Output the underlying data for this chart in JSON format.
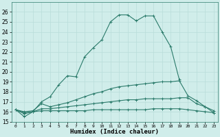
{
  "xlabel": "Humidex (Indice chaleur)",
  "x": [
    0,
    1,
    2,
    3,
    4,
    5,
    6,
    7,
    8,
    9,
    10,
    11,
    12,
    13,
    14,
    15,
    16,
    17,
    18,
    19,
    20,
    21,
    22,
    23
  ],
  "line1": [
    16.2,
    15.5,
    16.0,
    17.0,
    17.5,
    18.7,
    19.6,
    19.5,
    21.5,
    22.4,
    23.2,
    25.0,
    25.7,
    25.7,
    25.1,
    25.6,
    25.6,
    24.0,
    22.5,
    19.2,
    null,
    null,
    null,
    null
  ],
  "line2": [
    16.2,
    16.0,
    16.1,
    16.8,
    16.5,
    16.7,
    16.9,
    17.2,
    17.5,
    17.8,
    18.0,
    18.3,
    18.5,
    18.6,
    18.7,
    18.8,
    18.9,
    19.0,
    19.0,
    19.1,
    17.6,
    17.1,
    16.5,
    15.9
  ],
  "line3": [
    16.2,
    15.9,
    16.0,
    16.3,
    16.3,
    16.4,
    16.5,
    16.6,
    16.7,
    16.8,
    16.9,
    17.0,
    17.1,
    17.2,
    17.2,
    17.3,
    17.3,
    17.3,
    17.3,
    17.4,
    17.4,
    16.8,
    16.5,
    16.1
  ],
  "line4": [
    16.2,
    15.8,
    16.0,
    16.1,
    16.1,
    16.1,
    16.1,
    16.1,
    16.1,
    16.2,
    16.2,
    16.2,
    16.2,
    16.2,
    16.2,
    16.2,
    16.3,
    16.3,
    16.3,
    16.3,
    16.2,
    16.1,
    16.0,
    15.9
  ],
  "ylim": [
    15,
    27
  ],
  "yticks": [
    15,
    16,
    17,
    18,
    19,
    20,
    21,
    22,
    23,
    24,
    25,
    26
  ],
  "line_color": "#2a7a6a",
  "bg_color": "#d0edea",
  "grid_color": "#b8ddd9",
  "marker": "+"
}
